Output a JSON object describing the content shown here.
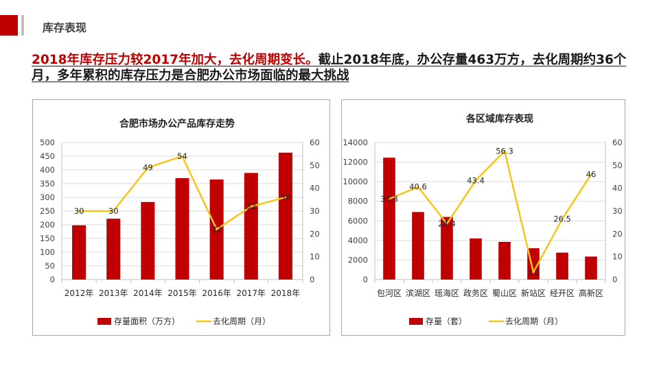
{
  "header": {
    "section_title": "库存表现",
    "headline_red": "2018年库存压力较2017年加大，去化周期变长。",
    "headline_rest": "截止2018年底，办公存量463万方，去化周期约36个月，多年累积的库存压力是合肥办公市场面临的最大挑战"
  },
  "colors": {
    "accent": "#c00000",
    "bar": "#c00000",
    "line": "#f5c518",
    "grid": "#d9d9d9"
  },
  "chart_data": [
    {
      "type": "bar",
      "title": "合肥市场办公产品库存走势",
      "categories": [
        "2012年",
        "2013年",
        "2014年",
        "2015年",
        "2016年",
        "2017年",
        "2018年"
      ],
      "series": [
        {
          "name": "存量面积（万方）",
          "type": "bar",
          "axis": "left",
          "values": [
            198,
            222,
            283,
            370,
            365,
            389,
            463
          ]
        },
        {
          "name": "去化周期（月）",
          "type": "line",
          "axis": "right",
          "values": [
            30,
            30,
            49,
            54,
            22,
            32,
            36
          ],
          "labels": [
            "30",
            "30",
            "49",
            "54",
            "22",
            "32",
            "36"
          ]
        }
      ],
      "y_left": {
        "min": 0,
        "max": 500,
        "step": 50
      },
      "y_right": {
        "min": 0,
        "max": 60,
        "step": 10
      },
      "grid": true,
      "legend_position": "bottom"
    },
    {
      "type": "bar",
      "title": "各区域库存表现",
      "categories": [
        "包河区",
        "滨湖区",
        "瑶海区",
        "政务区",
        "蜀山区",
        "新站区",
        "经开区",
        "高新区"
      ],
      "series": [
        {
          "name": "存量（套）",
          "type": "bar",
          "axis": "left",
          "values": [
            12450,
            6900,
            6400,
            4200,
            3850,
            3200,
            2750,
            2350
          ]
        },
        {
          "name": "去化周期（月）",
          "type": "line",
          "axis": "right",
          "values": [
            35.3,
            40.6,
            24.4,
            43.4,
            56.3,
            3.2,
            26.5,
            46
          ],
          "labels": [
            "35.3",
            "40.6",
            "24.4",
            "43.4",
            "56.3",
            "3.2",
            "26.5",
            "46"
          ]
        }
      ],
      "y_left": {
        "min": 0,
        "max": 14000,
        "step": 2000
      },
      "y_right": {
        "min": 0,
        "max": 60,
        "step": 10
      },
      "grid": true,
      "legend_position": "bottom"
    }
  ]
}
